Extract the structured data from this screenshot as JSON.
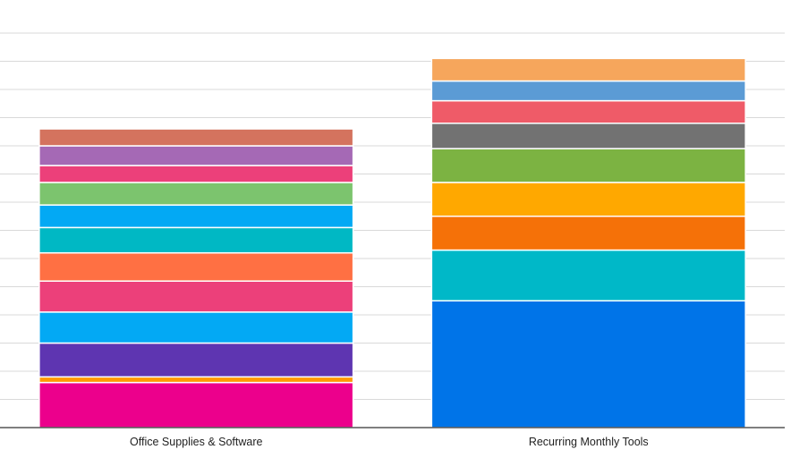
{
  "chart_data": {
    "type": "bar",
    "stacked": true,
    "categories": [
      "Office Supplies & Software",
      "Recurring Monthly Tools"
    ],
    "ylim": [
      0,
      140
    ],
    "grid": true,
    "legend": "none",
    "segments": [
      [
        {
          "value": 16,
          "color": "#ec008c"
        },
        {
          "value": 2,
          "color": "#ff9800"
        },
        {
          "value": 12,
          "color": "#5e35b1"
        },
        {
          "value": 11,
          "color": "#03a9f4"
        },
        {
          "value": 11,
          "color": "#ec407a"
        },
        {
          "value": 10,
          "color": "#ff7043"
        },
        {
          "value": 9,
          "color": "#00b8c4"
        },
        {
          "value": 8,
          "color": "#03a9f4"
        },
        {
          "value": 8,
          "color": "#7cc46e"
        },
        {
          "value": 6,
          "color": "#ec407a"
        },
        {
          "value": 7,
          "color": "#a569b5"
        },
        {
          "value": 6,
          "color": "#d4735e"
        }
      ],
      [
        {
          "value": 45,
          "color": "#0074e8"
        },
        {
          "value": 18,
          "color": "#00b8c8"
        },
        {
          "value": 12,
          "color": "#f57108"
        },
        {
          "value": 12,
          "color": "#ffa800"
        },
        {
          "value": 12,
          "color": "#7cb342"
        },
        {
          "value": 9,
          "color": "#727272"
        },
        {
          "value": 8,
          "color": "#ef5b68"
        },
        {
          "value": 7,
          "color": "#5b9bd5"
        },
        {
          "value": 8,
          "color": "#f6a65c"
        }
      ]
    ]
  }
}
